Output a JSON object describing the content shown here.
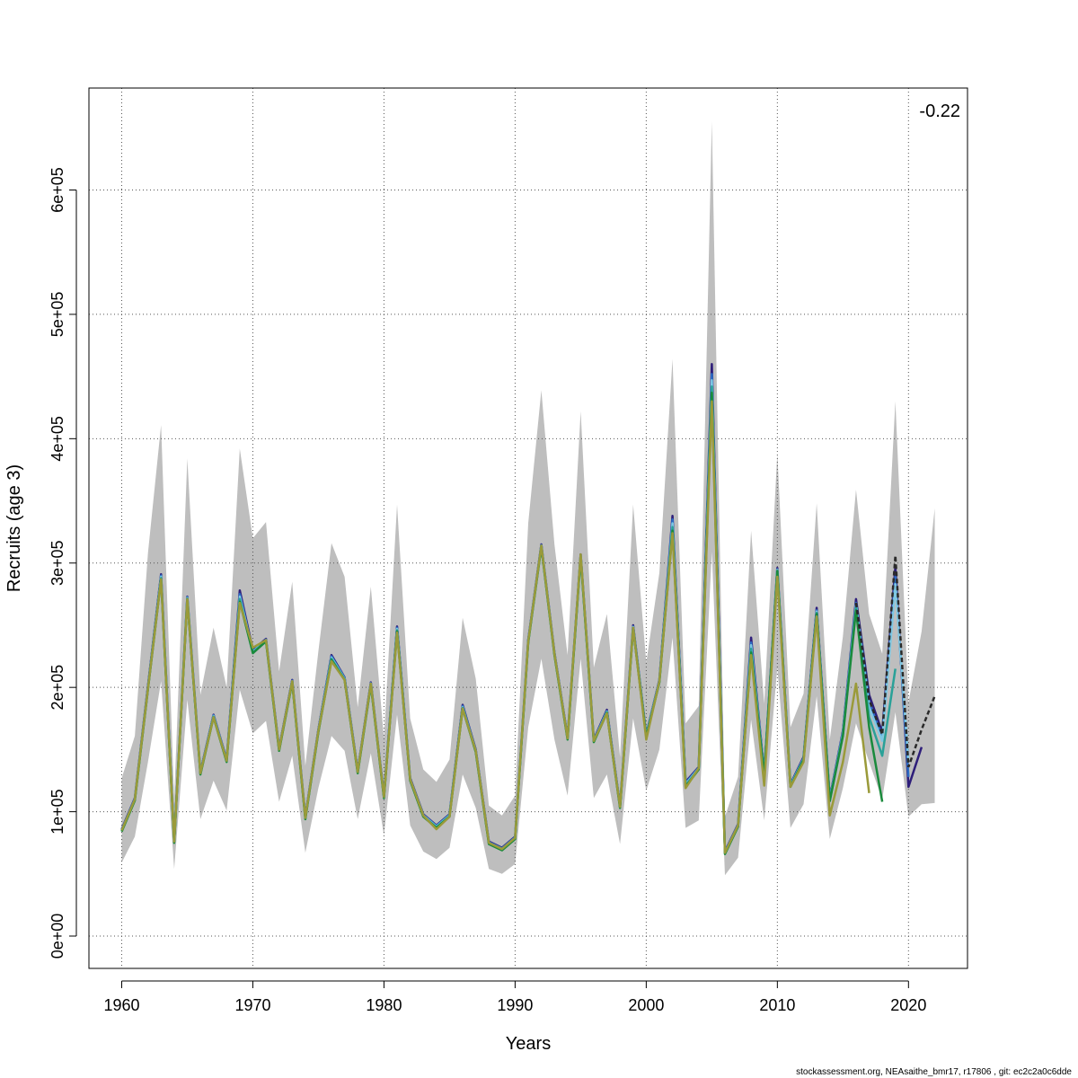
{
  "chart_data": {
    "type": "line",
    "xlabel": "Years",
    "ylabel": "Recruits (age 3)",
    "xlim": [
      1957.5,
      2024.5
    ],
    "ylim": [
      -26000,
      682000
    ],
    "x_ticks": [
      1960,
      1970,
      1980,
      1990,
      2000,
      2010,
      2020
    ],
    "x_tick_labels": [
      "1960",
      "1970",
      "1980",
      "1990",
      "2000",
      "2010",
      "2020"
    ],
    "y_ticks": [
      0,
      100000,
      200000,
      300000,
      400000,
      500000,
      600000
    ],
    "y_tick_labels": [
      "0e+00",
      "1e+05",
      "2e+05",
      "3e+05",
      "4e+05",
      "5e+05",
      "6e+05"
    ],
    "grid": true,
    "annotation": "-0.22",
    "footer": "stockassessment.org, NEAsaithe_bmr17, r17806 , git: ec2c2a0c6dde",
    "band": {
      "color": "#bebebe",
      "x": [
        1960,
        1961,
        1962,
        1963,
        1964,
        1965,
        1966,
        1967,
        1968,
        1969,
        1970,
        1971,
        1972,
        1973,
        1974,
        1975,
        1976,
        1977,
        1978,
        1979,
        1980,
        1981,
        1982,
        1983,
        1984,
        1985,
        1986,
        1987,
        1988,
        1989,
        1990,
        1991,
        1992,
        1993,
        1994,
        1995,
        1996,
        1997,
        1998,
        1999,
        2000,
        2001,
        2002,
        2003,
        2004,
        2005,
        2006,
        2007,
        2008,
        2009,
        2010,
        2011,
        2012,
        2013,
        2014,
        2015,
        2016,
        2017,
        2018,
        2019,
        2020,
        2021,
        2022
      ],
      "lower": [
        59000,
        80000,
        140000,
        205000,
        54000,
        190000,
        94000,
        125000,
        101000,
        198000,
        163000,
        173000,
        108000,
        145000,
        67000,
        119000,
        161000,
        149000,
        94000,
        147000,
        81000,
        178000,
        89000,
        68000,
        62000,
        71000,
        130000,
        103000,
        54000,
        50000,
        58000,
        168000,
        223000,
        158000,
        113000,
        223000,
        111000,
        130000,
        74000,
        175000,
        117000,
        150000,
        240000,
        87000,
        93000,
        309000,
        49000,
        63000,
        174000,
        93000,
        216000,
        87000,
        106000,
        193000,
        78000,
        119000,
        171000,
        140000,
        110000,
        180000,
        96000,
        106000,
        107000
      ],
      "upper": [
        127000,
        161000,
        308000,
        411000,
        110000,
        384000,
        194000,
        248000,
        200000,
        392000,
        320000,
        333000,
        213000,
        285000,
        137000,
        229000,
        316000,
        289000,
        184000,
        281000,
        159000,
        347000,
        175000,
        134000,
        124000,
        142000,
        256000,
        207000,
        105000,
        97000,
        113000,
        332000,
        439000,
        315000,
        226000,
        422000,
        216000,
        259000,
        144000,
        347000,
        220000,
        292000,
        464000,
        171000,
        185000,
        655000,
        96000,
        128000,
        326000,
        187000,
        388000,
        168000,
        195000,
        348000,
        158000,
        241000,
        359000,
        259000,
        227000,
        430000,
        188000,
        245000,
        344000
      ]
    },
    "series": [
      {
        "color": "#2e1e7a",
        "x": [
          1960,
          1961,
          1962,
          1963,
          1964,
          1965,
          1966,
          1967,
          1968,
          1969,
          1970,
          1971,
          1972,
          1973,
          1974,
          1975,
          1976,
          1977,
          1978,
          1979,
          1980,
          1981,
          1982,
          1983,
          1984,
          1985,
          1986,
          1987,
          1988,
          1989,
          1990,
          1991,
          1992,
          1993,
          1994,
          1995,
          1996,
          1997,
          1998,
          1999,
          2000,
          2001,
          2002,
          2003,
          2004,
          2005,
          2006,
          2007,
          2008,
          2009,
          2010,
          2011,
          2012,
          2013,
          2014,
          2015,
          2016,
          2017,
          2018,
          2019,
          2020,
          2021
        ],
        "values": [
          86000,
          111000,
          201000,
          291000,
          77000,
          273000,
          132000,
          178000,
          142000,
          278000,
          230000,
          239000,
          151000,
          206000,
          96000,
          166000,
          226000,
          208000,
          133000,
          204000,
          113000,
          249000,
          127000,
          98000,
          89000,
          98000,
          186000,
          150000,
          76000,
          71000,
          80000,
          238000,
          315000,
          228000,
          160000,
          307000,
          158000,
          182000,
          105000,
          250000,
          162000,
          206000,
          338000,
          124000,
          136000,
          460000,
          68000,
          90000,
          240000,
          131000,
          296000,
          122000,
          144000,
          264000,
          111000,
          165000,
          271000,
          194000,
          164000,
          297000,
          120000,
          152000
        ]
      },
      {
        "color": "#2b6cc4",
        "x": [
          1960,
          1961,
          1962,
          1963,
          1964,
          1965,
          1966,
          1967,
          1968,
          1969,
          1970,
          1971,
          1972,
          1973,
          1974,
          1975,
          1976,
          1977,
          1978,
          1979,
          1980,
          1981,
          1982,
          1983,
          1984,
          1985,
          1986,
          1987,
          1988,
          1989,
          1990,
          1991,
          1992,
          1993,
          1994,
          1995,
          1996,
          1997,
          1998,
          1999,
          2000,
          2001,
          2002,
          2003,
          2004,
          2005,
          2006,
          2007,
          2008,
          2009,
          2010,
          2011,
          2012,
          2013,
          2014,
          2015,
          2016,
          2017,
          2018,
          2019,
          2020
        ],
        "values": [
          85500,
          110500,
          200000,
          290000,
          76500,
          272500,
          131500,
          177500,
          141500,
          275000,
          229000,
          238500,
          150500,
          205500,
          95500,
          165500,
          225000,
          207500,
          132500,
          203500,
          112500,
          248000,
          126500,
          97500,
          88500,
          97500,
          185000,
          149500,
          75500,
          70500,
          79500,
          237500,
          314500,
          227500,
          159500,
          306500,
          157500,
          181000,
          104500,
          249000,
          161500,
          205500,
          335000,
          123000,
          135500,
          452000,
          67500,
          89500,
          236000,
          130000,
          295000,
          121500,
          143000,
          262000,
          110000,
          164000,
          268000,
          188000,
          160000,
          289000,
          128000
        ]
      },
      {
        "color": "#7ec8e3",
        "x": [
          1960,
          1961,
          1962,
          1963,
          1964,
          1965,
          1966,
          1967,
          1968,
          1969,
          1970,
          1971,
          1972,
          1973,
          1974,
          1975,
          1976,
          1977,
          1978,
          1979,
          1980,
          1981,
          1982,
          1983,
          1984,
          1985,
          1986,
          1987,
          1988,
          1989,
          1990,
          1991,
          1992,
          1993,
          1994,
          1995,
          1996,
          1997,
          1998,
          1999,
          2000,
          2001,
          2002,
          2003,
          2004,
          2005,
          2006,
          2007,
          2008,
          2009,
          2010,
          2011,
          2012,
          2013,
          2014,
          2015,
          2016,
          2017,
          2018,
          2019,
          2020
        ],
        "values": [
          85000,
          110000,
          199500,
          289000,
          76000,
          272000,
          131000,
          177000,
          141000,
          273000,
          228500,
          238000,
          150000,
          205000,
          95000,
          165000,
          224000,
          207000,
          132000,
          203000,
          112000,
          247000,
          126000,
          97000,
          88000,
          97000,
          184000,
          149000,
          75000,
          70000,
          79000,
          237000,
          314000,
          227000,
          159000,
          306000,
          157000,
          180500,
          104000,
          248500,
          161000,
          205000,
          332000,
          122000,
          135000,
          447000,
          67000,
          89000,
          234000,
          129500,
          294500,
          121000,
          142500,
          261000,
          109500,
          163000,
          266000,
          184000,
          157000,
          283000,
          140000
        ]
      },
      {
        "color": "#2aa198",
        "x": [
          1960,
          1961,
          1962,
          1963,
          1964,
          1965,
          1966,
          1967,
          1968,
          1969,
          1970,
          1971,
          1972,
          1973,
          1974,
          1975,
          1976,
          1977,
          1978,
          1979,
          1980,
          1981,
          1982,
          1983,
          1984,
          1985,
          1986,
          1987,
          1988,
          1989,
          1990,
          1991,
          1992,
          1993,
          1994,
          1995,
          1996,
          1997,
          1998,
          1999,
          2000,
          2001,
          2002,
          2003,
          2004,
          2005,
          2006,
          2007,
          2008,
          2009,
          2010,
          2011,
          2012,
          2013,
          2014,
          2015,
          2016,
          2017,
          2018,
          2019
        ],
        "values": [
          84500,
          109500,
          199000,
          288000,
          75500,
          271500,
          130500,
          176500,
          140500,
          271000,
          228000,
          237500,
          149500,
          204500,
          94500,
          164500,
          223000,
          206500,
          131500,
          202500,
          111500,
          246000,
          125500,
          96500,
          87500,
          96500,
          183500,
          148500,
          74500,
          69500,
          78500,
          236500,
          313500,
          226500,
          158500,
          305500,
          156500,
          180000,
          103500,
          248000,
          160500,
          204500,
          329000,
          121000,
          134500,
          442000,
          66500,
          88500,
          231000,
          129000,
          294000,
          120500,
          142000,
          260000,
          109000,
          162000,
          264000,
          176000,
          145000,
          215000
        ]
      },
      {
        "color": "#1a8a3c",
        "x": [
          1960,
          1961,
          1962,
          1963,
          1964,
          1965,
          1966,
          1967,
          1968,
          1969,
          1970,
          1971,
          1972,
          1973,
          1974,
          1975,
          1976,
          1977,
          1978,
          1979,
          1980,
          1981,
          1982,
          1983,
          1984,
          1985,
          1986,
          1987,
          1988,
          1989,
          1990,
          1991,
          1992,
          1993,
          1994,
          1995,
          1996,
          1997,
          1998,
          1999,
          2000,
          2001,
          2002,
          2003,
          2004,
          2005,
          2006,
          2007,
          2008,
          2009,
          2010,
          2011,
          2012,
          2013,
          2014,
          2015,
          2016,
          2017,
          2018
        ],
        "values": [
          84000,
          109000,
          198500,
          287000,
          75000,
          271000,
          130000,
          176000,
          140000,
          269000,
          227500,
          237000,
          149000,
          204000,
          94000,
          164000,
          222000,
          206000,
          131000,
          202000,
          111000,
          245000,
          125000,
          96000,
          87000,
          96000,
          183000,
          148000,
          74000,
          69000,
          78000,
          236000,
          313000,
          226000,
          158000,
          305000,
          156000,
          179500,
          103000,
          247500,
          160000,
          204000,
          326000,
          120000,
          134000,
          437000,
          66000,
          88000,
          228000,
          128500,
          293500,
          120000,
          141500,
          259000,
          108500,
          161000,
          262000,
          168000,
          108000
        ]
      },
      {
        "color": "#9a9a3a",
        "x": [
          1960,
          1961,
          1962,
          1963,
          1964,
          1965,
          1966,
          1967,
          1968,
          1969,
          1970,
          1971,
          1972,
          1973,
          1974,
          1975,
          1976,
          1977,
          1978,
          1979,
          1980,
          1981,
          1982,
          1983,
          1984,
          1985,
          1986,
          1987,
          1988,
          1989,
          1990,
          1991,
          1992,
          1993,
          1994,
          1995,
          1996,
          1997,
          1998,
          1999,
          2000,
          2001,
          2002,
          2003,
          2004,
          2005,
          2006,
          2007,
          2008,
          2009,
          2010,
          2011,
          2012,
          2013,
          2014,
          2015,
          2016,
          2017
        ],
        "values": [
          85000,
          110000,
          199000,
          287000,
          76000,
          271000,
          131000,
          176000,
          141000,
          268000,
          232000,
          238000,
          150000,
          205000,
          95000,
          165000,
          221000,
          206000,
          132000,
          203000,
          112000,
          244000,
          126000,
          97000,
          86000,
          96000,
          183000,
          149000,
          75000,
          70000,
          79000,
          237000,
          314000,
          227000,
          159000,
          307000,
          157000,
          179000,
          104000,
          248000,
          158000,
          205000,
          324000,
          119000,
          135000,
          430000,
          67000,
          89000,
          226000,
          121000,
          289000,
          120000,
          140000,
          257000,
          97000,
          140000,
          203000,
          115000
        ]
      }
    ],
    "projection": {
      "color": "#2a2a2a",
      "x": [
        2016,
        2017,
        2018,
        2019,
        2020,
        2021,
        2022
      ],
      "values": [
        268000,
        190000,
        162000,
        306000,
        136000,
        166000,
        193000
      ]
    }
  }
}
